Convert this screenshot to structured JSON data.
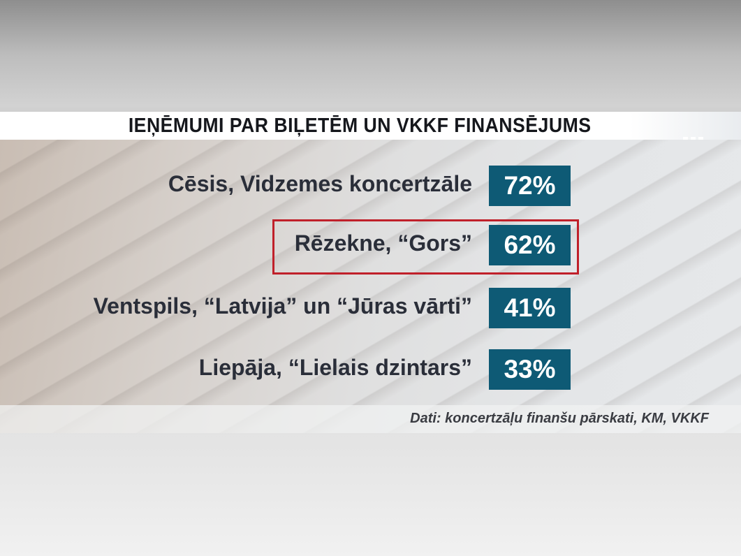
{
  "chart_data": {
    "type": "table",
    "title": "IEŅĒMUMI PAR BIĻETĒM UN VKKF FINANSĒJUMS",
    "categories": [
      "Cēsis, Vidzemes koncertzāle",
      "Rēzekne, “Gors”",
      "Ventspils, “Latvija” un “Jūras vārti”",
      "Liepāja, “Lielais dzintars”"
    ],
    "values": [
      72,
      62,
      41,
      33
    ],
    "value_labels": [
      "72%",
      "62%",
      "41%",
      "33%"
    ],
    "highlighted_category": "Rēzekne, “Gors”",
    "source": "Dati: koncertzāļu finanšu pārskati, KM, VKKF"
  },
  "colors": {
    "badge": "#0e5a75",
    "highlight": "#c0202a",
    "text": "#2a2e39"
  },
  "icons": {
    "menu": "more-dots-icon"
  }
}
